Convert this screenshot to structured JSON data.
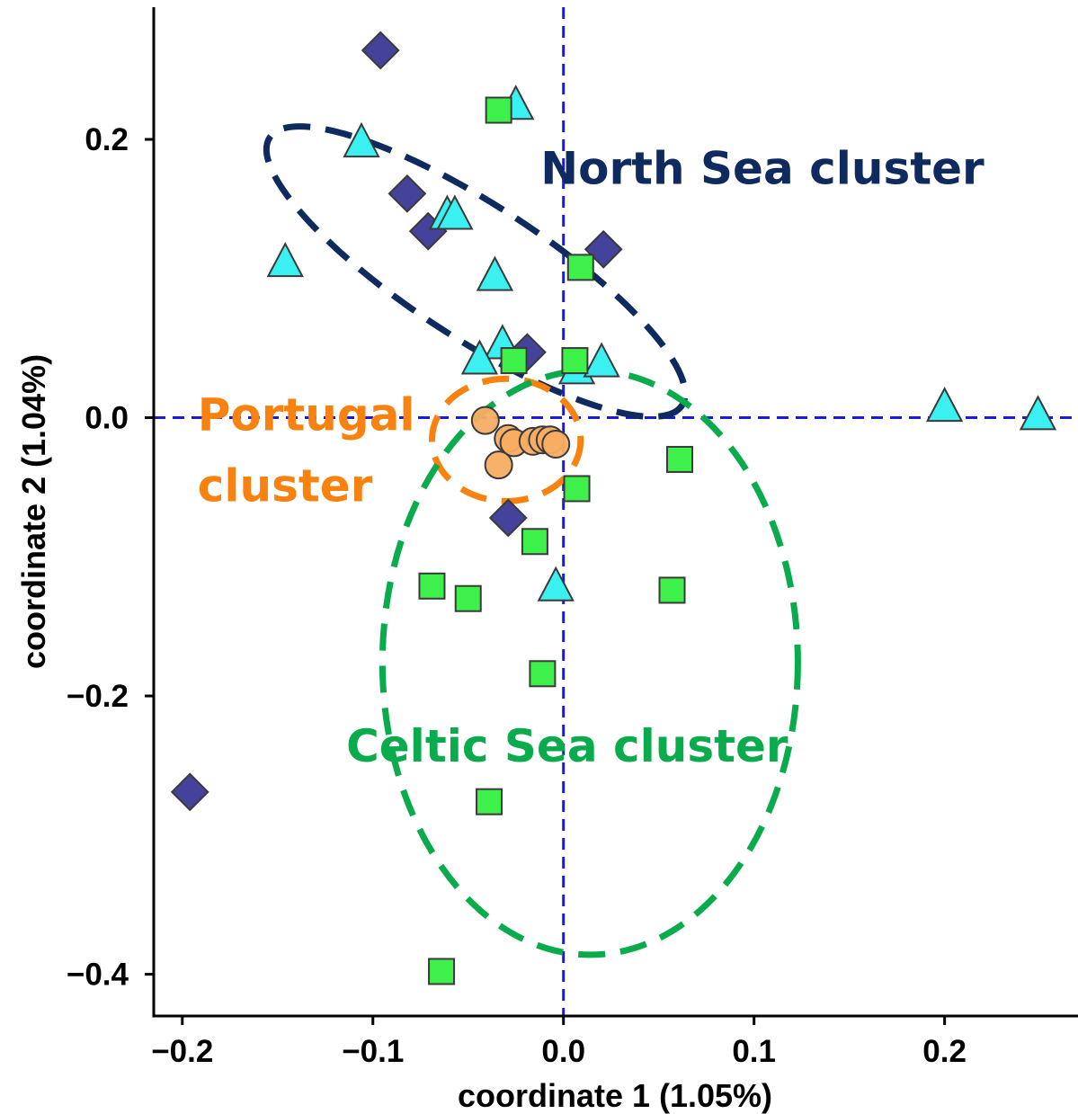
{
  "chart_data": {
    "type": "scatter",
    "title": "",
    "xlabel": "coordinate 1 (1.05%)",
    "ylabel": "coordinate 2 (1.04%)",
    "xlim": [
      -0.215,
      0.27
    ],
    "ylim": [
      -0.43,
      0.295
    ],
    "xticks": [
      -0.2,
      -0.1,
      0.0,
      0.1,
      0.2
    ],
    "xtick_labels": [
      "−0.2",
      "−0.1",
      "0.0",
      "0.1",
      "0.2"
    ],
    "yticks": [
      0.2,
      0.0,
      -0.2,
      -0.4
    ],
    "ytick_labels": [
      "0.2",
      "0.0",
      "−0.2",
      "−0.4"
    ],
    "grid": false,
    "reference_lines": {
      "x": 0,
      "y": 0,
      "color": "#1a1adb"
    },
    "series": [
      {
        "marker": "diamond",
        "color": "#45429c",
        "points": [
          [
            -0.096,
            0.264
          ],
          [
            -0.082,
            0.161
          ],
          [
            -0.071,
            0.134
          ],
          [
            0.021,
            0.121
          ],
          [
            -0.019,
            0.047
          ],
          [
            -0.029,
            -0.072
          ],
          [
            -0.196,
            -0.269
          ]
        ]
      },
      {
        "marker": "triangle",
        "color": "#3af0f0",
        "points": [
          [
            -0.025,
            0.224
          ],
          [
            -0.106,
            0.197
          ],
          [
            -0.061,
            0.145
          ],
          [
            -0.057,
            0.145
          ],
          [
            -0.146,
            0.111
          ],
          [
            -0.036,
            0.101
          ],
          [
            -0.032,
            0.052
          ],
          [
            -0.044,
            0.041
          ],
          [
            0.007,
            0.034
          ],
          [
            0.02,
            0.039
          ],
          [
            0.2,
            0.007
          ],
          [
            0.249,
            0.001
          ],
          [
            -0.004,
            -0.122
          ]
        ]
      },
      {
        "marker": "square",
        "color": "#3ef04a",
        "points": [
          [
            -0.034,
            0.221
          ],
          [
            0.009,
            0.108
          ],
          [
            -0.026,
            0.041
          ],
          [
            0.006,
            0.041
          ],
          [
            0.061,
            -0.03
          ],
          [
            0.007,
            -0.051
          ],
          [
            -0.015,
            -0.089
          ],
          [
            -0.069,
            -0.121
          ],
          [
            -0.05,
            -0.13
          ],
          [
            0.057,
            -0.124
          ],
          [
            -0.011,
            -0.184
          ],
          [
            -0.039,
            -0.276
          ],
          [
            -0.064,
            -0.398
          ]
        ]
      },
      {
        "marker": "circle",
        "color": "#f8ad62",
        "points": [
          [
            -0.041,
            -0.002
          ],
          [
            -0.029,
            -0.015
          ],
          [
            -0.026,
            -0.018
          ],
          [
            -0.016,
            -0.017
          ],
          [
            -0.011,
            -0.016
          ],
          [
            -0.007,
            -0.016
          ],
          [
            -0.004,
            -0.019
          ],
          [
            -0.034,
            -0.034
          ]
        ]
      }
    ],
    "annotations": [
      {
        "text": "North Sea cluster",
        "color": "#0e2a5e",
        "x": -0.012,
        "y": 0.168
      },
      {
        "text": "Portugal",
        "color": "#f7820f",
        "x": -0.192,
        "y": -0.009
      },
      {
        "text": "cluster",
        "color": "#f7820f",
        "x": -0.192,
        "y": -0.06
      },
      {
        "text": "Celtic Sea cluster",
        "color": "#09ab4c",
        "x": -0.114,
        "y": -0.247
      }
    ],
    "ellipses": [
      {
        "name": "North Sea cluster",
        "color": "#0e2a5e",
        "cx": -0.046,
        "cy": 0.105,
        "rx": 0.129,
        "ry": 0.048,
        "angle_deg": 33
      },
      {
        "name": "Portugal cluster",
        "color": "#f7820f",
        "cx": -0.03,
        "cy": -0.016,
        "rx": 0.039,
        "ry": 0.044,
        "angle_deg": 0
      },
      {
        "name": "Celtic Sea cluster",
        "color": "#09ab4c",
        "cx": 0.014,
        "cy": -0.176,
        "rx": 0.109,
        "ry": 0.21,
        "angle_deg": 0
      }
    ]
  }
}
